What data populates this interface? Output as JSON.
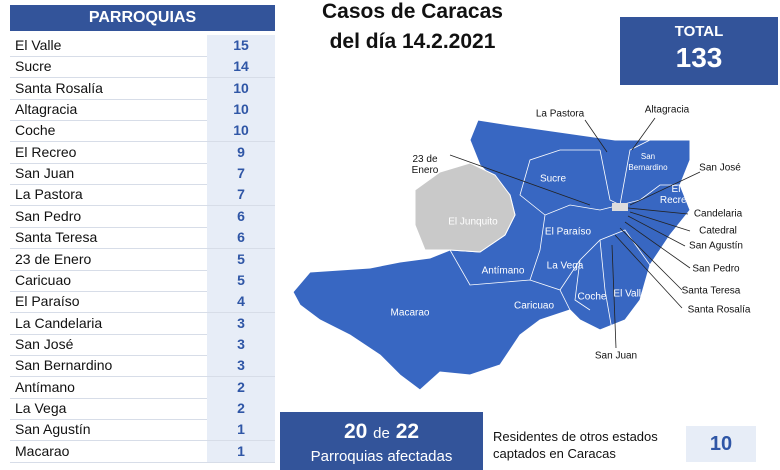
{
  "header": {
    "title_lines": [
      "Casos de Caracas",
      "del día 14.2.2021"
    ]
  },
  "table": {
    "header": "PARROQUIAS",
    "rows": [
      [
        "El Valle",
        15
      ],
      [
        "Sucre",
        14
      ],
      [
        "Santa Rosalía",
        10
      ],
      [
        "Altagracia",
        10
      ],
      [
        "Coche",
        10
      ],
      [
        "El Recreo",
        9
      ],
      [
        "San Juan",
        7
      ],
      [
        "La Pastora",
        7
      ],
      [
        "San Pedro",
        6
      ],
      [
        "Santa Teresa",
        6
      ],
      [
        "23 de Enero",
        5
      ],
      [
        "Caricuao",
        5
      ],
      [
        "El Paraíso",
        4
      ],
      [
        "La Candelaria",
        3
      ],
      [
        "San José",
        3
      ],
      [
        "San Bernardino",
        3
      ],
      [
        "Antímano",
        2
      ],
      [
        "La Vega",
        2
      ],
      [
        "San Agustín",
        1
      ],
      [
        "Macarao",
        1
      ]
    ]
  },
  "total": {
    "label": "TOTAL",
    "value": 133
  },
  "affected": {
    "count": 20,
    "connector": "de",
    "total": 22,
    "label": "Parroquias afectadas"
  },
  "residents": {
    "label": "Residentes de otros estados captados en Caracas",
    "value": 10
  },
  "map": {
    "labels": [
      "La Pastora",
      "Altagracia",
      "23 de Enero",
      "Sucre",
      "San Bernardino",
      "El Recreo",
      "San José",
      "El Junquito",
      "Candelaria",
      "Catedral",
      "San Agustín",
      "El Paraíso",
      "La Vega",
      "Antímano",
      "San Pedro",
      "Santa Teresa",
      "Santa Rosalía",
      "Caricuao",
      "Coche",
      "El Valle",
      "Macarao",
      "San Juan"
    ]
  }
}
